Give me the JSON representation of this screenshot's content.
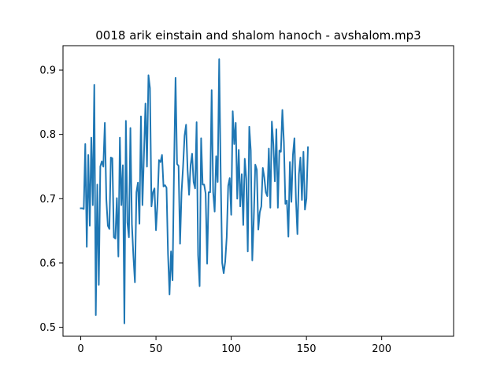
{
  "chart_data": {
    "type": "line",
    "title": "0018 arik einstain and shalom hanoch - avshalom.mp3",
    "xlabel": "",
    "ylabel": "",
    "xlim": [
      -11.8,
      247.8
    ],
    "ylim": [
      0.486,
      0.938
    ],
    "xticks": [
      0,
      50,
      100,
      150,
      200
    ],
    "yticks": [
      0.5,
      0.6,
      0.7,
      0.8,
      0.9
    ],
    "ytick_labels": [
      "0.5",
      "0.6",
      "0.7",
      "0.8",
      "0.9"
    ],
    "grid": false,
    "legend": "none",
    "color": "#1f77b4",
    "series": [
      {
        "values": [
          0.685,
          0.685,
          0.684,
          0.785,
          0.625,
          0.768,
          0.658,
          0.795,
          0.69,
          0.877,
          0.519,
          0.722,
          0.566,
          0.75,
          0.758,
          0.75,
          0.818,
          0.699,
          0.658,
          0.653,
          0.764,
          0.763,
          0.64,
          0.638,
          0.701,
          0.61,
          0.795,
          0.69,
          0.752,
          0.506,
          0.821,
          0.663,
          0.64,
          0.81,
          0.66,
          0.61,
          0.57,
          0.71,
          0.725,
          0.661,
          0.828,
          0.69,
          0.768,
          0.848,
          0.75,
          0.892,
          0.872,
          0.688,
          0.71,
          0.716,
          0.651,
          0.693,
          0.76,
          0.757,
          0.768,
          0.719,
          0.721,
          0.717,
          0.614,
          0.551,
          0.618,
          0.573,
          0.748,
          0.888,
          0.754,
          0.751,
          0.63,
          0.71,
          0.75,
          0.798,
          0.815,
          0.745,
          0.706,
          0.752,
          0.77,
          0.726,
          0.716,
          0.819,
          0.612,
          0.564,
          0.794,
          0.722,
          0.722,
          0.708,
          0.599,
          0.71,
          0.71,
          0.869,
          0.71,
          0.68,
          0.766,
          0.726,
          0.917,
          0.74,
          0.6,
          0.584,
          0.602,
          0.64,
          0.72,
          0.732,
          0.675,
          0.836,
          0.785,
          0.818,
          0.7,
          0.776,
          0.688,
          0.738,
          0.659,
          0.762,
          0.731,
          0.618,
          0.812,
          0.775,
          0.604,
          0.67,
          0.753,
          0.745,
          0.652,
          0.679,
          0.688,
          0.748,
          0.733,
          0.71,
          0.704,
          0.778,
          0.686,
          0.82,
          0.785,
          0.727,
          0.808,
          0.686,
          0.775,
          0.773,
          0.838,
          0.788,
          0.692,
          0.697,
          0.641,
          0.757,
          0.695,
          0.768,
          0.794,
          0.7,
          0.645,
          0.738,
          0.764,
          0.698,
          0.773,
          0.683,
          0.7,
          0.78
        ]
      }
    ]
  }
}
